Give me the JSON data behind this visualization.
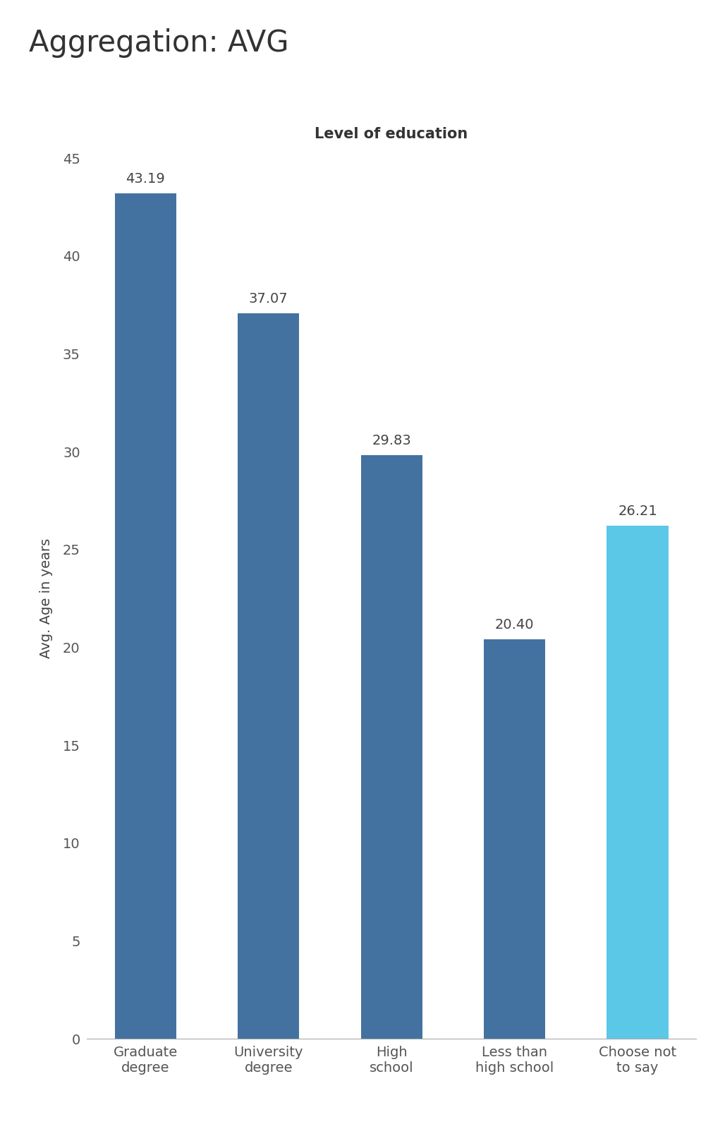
{
  "title": "Aggregation: AVG",
  "xlabel": "Level of education",
  "ylabel": "Avg. Age in years",
  "categories": [
    "Graduate\ndegree",
    "University\ndegree",
    "High\nschool",
    "Less than\nhigh school",
    "Choose not\nto say"
  ],
  "values": [
    43.19,
    37.07,
    29.83,
    20.4,
    26.21
  ],
  "bar_colors": [
    "#4472a0",
    "#4472a0",
    "#4472a0",
    "#4472a0",
    "#5bc8e8"
  ],
  "value_labels": [
    "43.19",
    "37.07",
    "29.83",
    "20.40",
    "26.21"
  ],
  "ylim": [
    0,
    45
  ],
  "yticks": [
    0,
    5,
    10,
    15,
    20,
    25,
    30,
    35,
    40,
    45
  ],
  "background_color": "#ffffff",
  "title_fontsize": 30,
  "xlabel_fontsize": 15,
  "ylabel_fontsize": 14,
  "tick_fontsize": 14,
  "label_fontsize": 14
}
